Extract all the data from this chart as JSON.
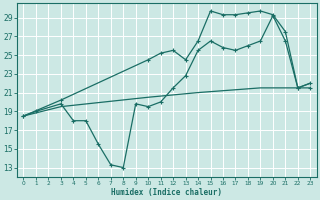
{
  "bg_color": "#cce8e4",
  "grid_color": "#b8d8d4",
  "line_color": "#1a6e65",
  "xlabel": "Humidex (Indice chaleur)",
  "xlim": [
    -0.5,
    23.5
  ],
  "ylim": [
    12,
    30.5
  ],
  "yticks": [
    13,
    15,
    17,
    19,
    21,
    23,
    25,
    27,
    29
  ],
  "xticks": [
    0,
    1,
    2,
    3,
    4,
    5,
    6,
    7,
    8,
    9,
    10,
    11,
    12,
    13,
    14,
    15,
    16,
    17,
    18,
    19,
    20,
    21,
    22,
    23
  ],
  "line1_x": [
    0,
    1,
    3,
    4,
    5,
    6,
    7,
    8,
    9,
    10,
    11,
    12,
    13,
    14,
    15,
    16,
    17,
    18,
    19,
    20,
    21,
    22,
    23
  ],
  "line1_y": [
    18.5,
    19.0,
    19.8,
    18.0,
    18.0,
    15.5,
    13.3,
    13.0,
    19.8,
    19.5,
    20.0,
    21.5,
    22.8,
    25.5,
    26.5,
    25.8,
    25.5,
    26.0,
    26.5,
    29.2,
    26.5,
    21.5,
    21.5
  ],
  "line2_x": [
    0,
    3,
    10,
    11,
    12,
    13,
    14,
    15,
    16,
    17,
    18,
    19,
    20,
    21,
    22,
    23
  ],
  "line2_y": [
    18.5,
    20.2,
    24.5,
    25.2,
    25.5,
    24.5,
    26.5,
    29.7,
    29.3,
    29.3,
    29.5,
    29.7,
    29.3,
    27.5,
    21.5,
    22.0
  ],
  "line3_x": [
    0,
    3,
    10,
    14,
    17,
    19,
    21,
    22,
    23
  ],
  "line3_y": [
    18.5,
    19.5,
    20.5,
    21.0,
    21.3,
    21.5,
    21.5,
    21.5,
    22.0
  ]
}
